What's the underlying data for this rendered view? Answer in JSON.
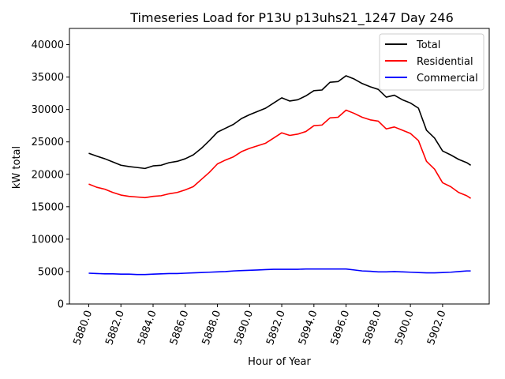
{
  "chart_data": {
    "type": "line",
    "title": "Timeseries Load for P13U p13uhs21_1247  Day 246",
    "xlabel": "Hour of Year",
    "ylabel": "kW total",
    "xlim": [
      5878.8,
      5904.9
    ],
    "ylim": [
      0,
      42500
    ],
    "xticks": [
      5880,
      5882,
      5884,
      5886,
      5888,
      5890,
      5892,
      5894,
      5896,
      5898,
      5900,
      5902
    ],
    "xtick_labels": [
      "5880.0",
      "5882.0",
      "5884.0",
      "5886.0",
      "5888.0",
      "5890.0",
      "5892.0",
      "5894.0",
      "5896.0",
      "5898.0",
      "5900.0",
      "5902.0"
    ],
    "yticks": [
      0,
      5000,
      10000,
      15000,
      20000,
      25000,
      30000,
      35000,
      40000
    ],
    "ytick_labels": [
      "0",
      "5000",
      "10000",
      "15000",
      "20000",
      "25000",
      "30000",
      "35000",
      "40000"
    ],
    "grid": false,
    "legend_position": "top-right",
    "x": [
      5880,
      5880.5,
      5881,
      5881.5,
      5882,
      5882.5,
      5883,
      5883.5,
      5884,
      5884.5,
      5885,
      5885.5,
      5886,
      5886.5,
      5887,
      5887.5,
      5888,
      5888.5,
      5889,
      5889.5,
      5890,
      5890.5,
      5891,
      5891.5,
      5892,
      5892.5,
      5893,
      5893.5,
      5894,
      5894.5,
      5895,
      5895.5,
      5896,
      5896.5,
      5897,
      5897.5,
      5898,
      5898.5,
      5899,
      5899.5,
      5900,
      5900.5,
      5901,
      5901.5,
      5902,
      5902.5,
      5903,
      5903.5,
      5903.75
    ],
    "series": [
      {
        "name": "Total",
        "color": "#000000",
        "values": [
          23250,
          22800,
          22400,
          21900,
          21400,
          21200,
          21050,
          20900,
          21300,
          21400,
          21800,
          22000,
          22400,
          23000,
          24000,
          25200,
          26500,
          27100,
          27700,
          28600,
          29200,
          29700,
          30200,
          31000,
          31800,
          31300,
          31500,
          32100,
          32900,
          33000,
          34200,
          34300,
          35200,
          34700,
          34000,
          33500,
          33100,
          31900,
          32200,
          31500,
          31000,
          30200,
          26800,
          25600,
          23600,
          23000,
          22300,
          21800,
          21400
        ]
      },
      {
        "name": "Residential",
        "color": "#ff0000",
        "values": [
          18500,
          18000,
          17700,
          17200,
          16800,
          16600,
          16500,
          16400,
          16600,
          16700,
          17000,
          17200,
          17600,
          18100,
          19200,
          20300,
          21600,
          22200,
          22700,
          23500,
          24000,
          24400,
          24800,
          25600,
          26400,
          26000,
          26200,
          26600,
          27500,
          27600,
          28700,
          28800,
          29900,
          29400,
          28800,
          28400,
          28200,
          27000,
          27300,
          26800,
          26300,
          25200,
          22000,
          20800,
          18700,
          18100,
          17200,
          16700,
          16300
        ]
      },
      {
        "name": "Commercial",
        "color": "#0000ff",
        "values": [
          4750,
          4700,
          4650,
          4650,
          4600,
          4600,
          4550,
          4550,
          4600,
          4650,
          4700,
          4700,
          4750,
          4800,
          4850,
          4900,
          4950,
          5000,
          5100,
          5150,
          5200,
          5250,
          5300,
          5350,
          5350,
          5350,
          5350,
          5400,
          5400,
          5400,
          5400,
          5400,
          5400,
          5250,
          5100,
          5050,
          4950,
          4950,
          5000,
          4950,
          4900,
          4850,
          4800,
          4800,
          4850,
          4900,
          5000,
          5100,
          5100
        ]
      }
    ]
  }
}
